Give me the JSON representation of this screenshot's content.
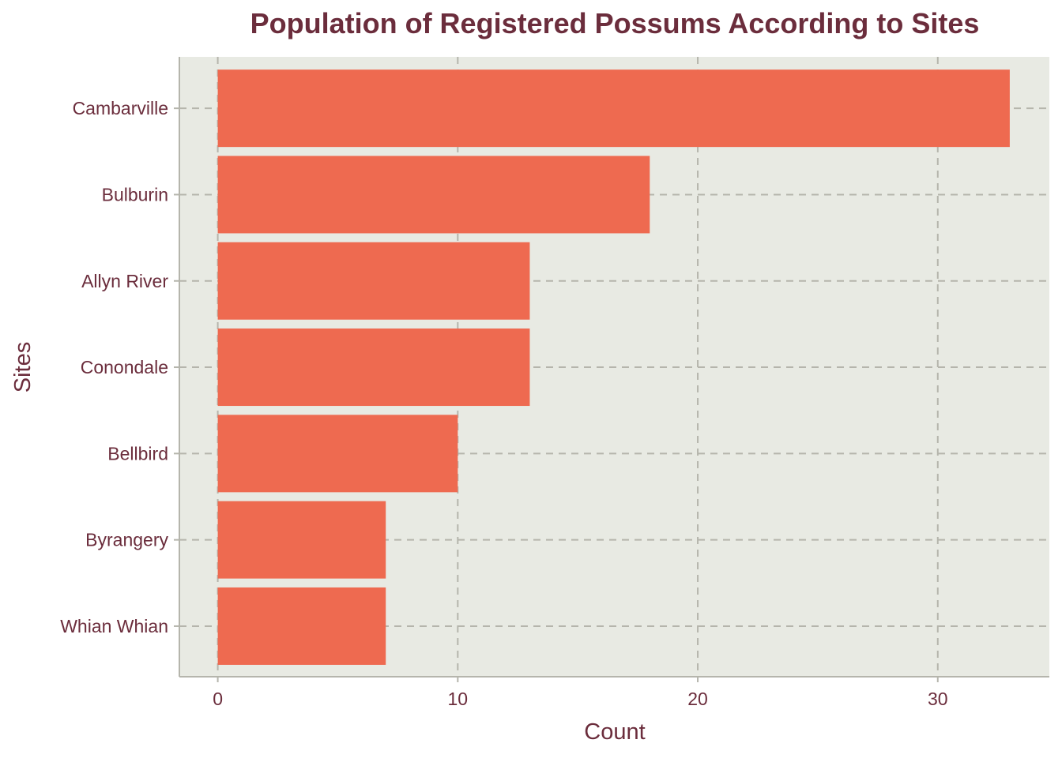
{
  "chart_data": {
    "type": "bar",
    "orientation": "horizontal",
    "title": "Population of Registered Possums According to Sites",
    "xlabel": "Count",
    "ylabel": "Sites",
    "categories": [
      "Cambarville",
      "Bulburin",
      "Allyn River",
      "Conondale",
      "Bellbird",
      "Byrangery",
      "Whian Whian"
    ],
    "values": [
      33,
      18,
      13,
      13,
      10,
      7,
      7
    ],
    "x_ticks": [
      0,
      10,
      20,
      30
    ],
    "xlim": [
      -1.6,
      34.65
    ],
    "grid": true,
    "legend": "none",
    "colors": {
      "bar": "#EE6A50",
      "panel_background": "#E8EAE3",
      "grid": "#B5B5AC",
      "axis_line": "#B5B5AC",
      "text": "#6B2D3C"
    }
  }
}
